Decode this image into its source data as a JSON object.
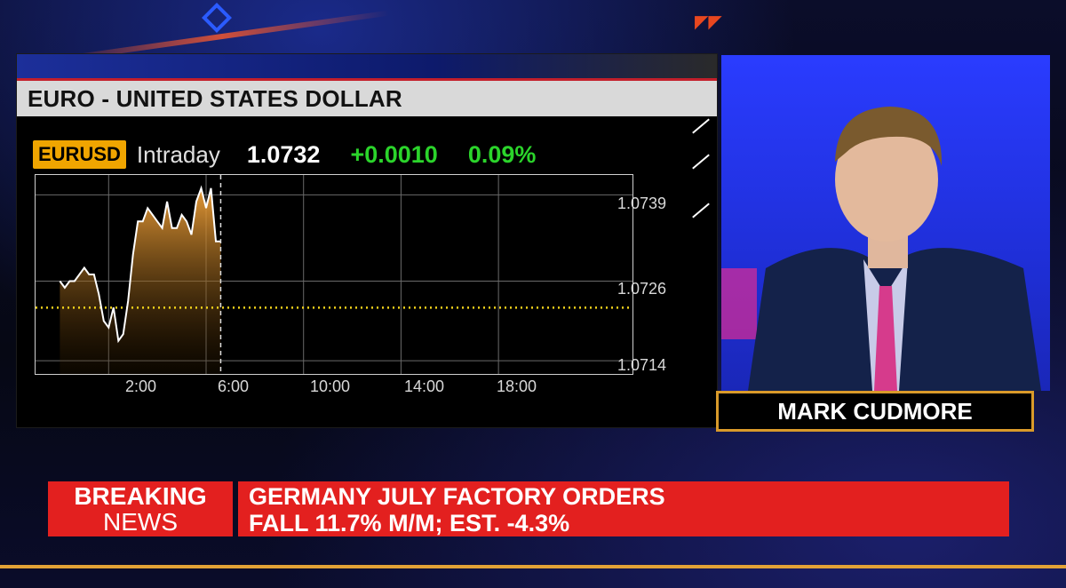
{
  "chart": {
    "title": "EURO - UNITED STATES DOLLAR",
    "ticker": "EURUSD",
    "timeframe": "Intraday",
    "last": "1.0732",
    "change": "+0.0010",
    "pct_change": "0.09%"
  },
  "anchor": {
    "name": "MARK CUDMORE"
  },
  "ticker": {
    "breaking_line1": "BREAKING",
    "breaking_line2": "NEWS",
    "headline_line1": "GERMANY JULY FACTORY ORDERS",
    "headline_line2": "FALL 11.7% M/M; EST. -4.3%"
  },
  "colors": {
    "ticker_badge": "#f0a500",
    "positive": "#2bd42b",
    "breaking_red": "#e3201f",
    "reference_line": "#f2d21b"
  },
  "chart_data": {
    "type": "area",
    "xtick_labels": [
      "2:00",
      "6:00",
      "10:00",
      "14:00",
      "18:00"
    ],
    "ytick_labels": [
      "1.0739",
      "1.0726",
      "1.0714"
    ],
    "x_hours": [
      0.0,
      0.2,
      0.4,
      0.6,
      0.8,
      1.0,
      1.2,
      1.4,
      1.6,
      1.8,
      2.0,
      2.2,
      2.4,
      2.6,
      2.8,
      3.0,
      3.2,
      3.4,
      3.6,
      3.8,
      4.0,
      4.2,
      4.4,
      4.6,
      4.8,
      5.0,
      5.2,
      5.4,
      5.6,
      5.8,
      6.0,
      6.2,
      6.4,
      6.6
    ],
    "values": [
      1.0726,
      1.0725,
      1.0726,
      1.0726,
      1.0727,
      1.0728,
      1.0727,
      1.0727,
      1.0724,
      1.072,
      1.0719,
      1.0722,
      1.0717,
      1.0718,
      1.0723,
      1.073,
      1.0735,
      1.0735,
      1.0737,
      1.0736,
      1.0735,
      1.0734,
      1.0738,
      1.0734,
      1.0734,
      1.0736,
      1.0735,
      1.0733,
      1.0738,
      1.074,
      1.0737,
      1.074,
      1.0732,
      1.0732
    ],
    "reference_level": 1.0722,
    "x_range_hours": [
      -1,
      23.5
    ],
    "ylim": [
      1.0712,
      1.0742
    ],
    "grid": true,
    "now_marker_hours": 6.6
  }
}
